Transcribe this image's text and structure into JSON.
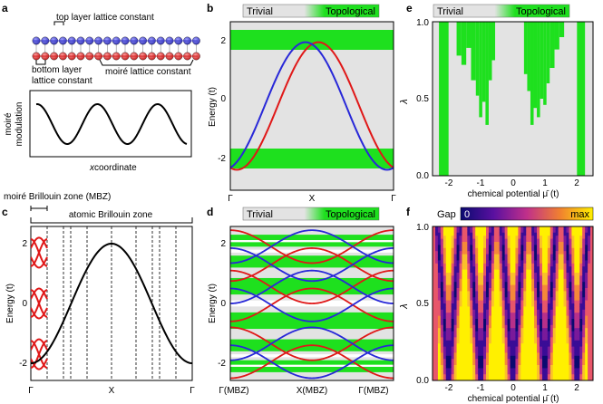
{
  "panels": {
    "a": {
      "letter": "a",
      "top_label": "top layer lattice constant",
      "bottom_label_1": "bottom layer",
      "bottom_label_2": "lattice constant",
      "moire_label": "moiré lattice constant",
      "ylabel_1": "moiré",
      "ylabel_2": "modulation",
      "xlabel_x": "x",
      "xlabel_rest": " coordinate",
      "top_atom_color": "#3a3acc",
      "bottom_atom_color": "#d42020"
    },
    "b": {
      "letter": "b",
      "legend_trivial": "Trivial",
      "legend_topological": "Topological",
      "ylabel": "Energy (t)",
      "yticks": [
        "2",
        "0",
        "-2"
      ],
      "xticks": [
        "Γ",
        "X",
        "Γ"
      ]
    },
    "c": {
      "letter": "c",
      "mbz_label": "moiré Brillouin zone (MBZ)",
      "abz_label": "atomic Brillouin zone",
      "ylabel": "Energy (t)",
      "yticks": [
        "2",
        "0",
        "-2"
      ],
      "xticks": [
        "Γ",
        "X",
        "Γ"
      ]
    },
    "d": {
      "letter": "d",
      "legend_trivial": "Trivial",
      "legend_topological": "Topological",
      "ylabel": "Energy (t)",
      "yticks": [
        "2",
        "0",
        "-2"
      ],
      "xticks": [
        "Γ(MBZ)",
        "X(MBZ)",
        "Γ(MBZ)"
      ]
    },
    "e": {
      "letter": "e",
      "legend_trivial": "Trivial",
      "legend_topological": "Topological",
      "ylabel": "λ",
      "yticks": [
        "1.0",
        "0.5",
        "0.0"
      ],
      "xticks": [
        "-2",
        "-1",
        "0",
        "1",
        "2"
      ],
      "xlabel": "chemical potential μ̄ (t)"
    },
    "f": {
      "letter": "f",
      "cbar_gap": "Gap",
      "cbar_min": "0",
      "cbar_max": "max",
      "ylabel": "λ",
      "yticks": [
        "1.0",
        "0.5",
        "0.0"
      ],
      "xticks": [
        "-2",
        "-1",
        "0",
        "1",
        "2"
      ],
      "xlabel": "chemical potential μ̄ (t)"
    }
  },
  "colors": {
    "topological": "#1ee01e",
    "trivial": "#e3e3e3",
    "band_red": "#e01818",
    "band_blue": "#2828d8"
  },
  "chart_data": [
    {
      "panel": "a",
      "type": "line",
      "title": "",
      "xlabel": "x coordinate",
      "ylabel": "moiré modulation",
      "series": [
        {
          "name": "modulation",
          "function": "cos",
          "periods": 2.5
        }
      ]
    },
    {
      "panel": "b",
      "type": "line",
      "xlabel": "",
      "ylabel": "Energy (t)",
      "ylim": [
        -2.6,
        2.6
      ],
      "categories": [
        "Γ",
        "X",
        "Γ"
      ],
      "series": [
        {
          "name": "red band",
          "color": "#e01818",
          "min": -2.2,
          "max": 2.2
        },
        {
          "name": "blue band",
          "color": "#2828d8",
          "min": -2.2,
          "max": 2.2
        }
      ],
      "topological_bands": [
        [
          1.6,
          2.2
        ],
        [
          -2.2,
          -1.6
        ]
      ]
    },
    {
      "panel": "c",
      "type": "line",
      "ylabel": "Energy (t)",
      "ylim": [
        -2.4,
        2.4
      ],
      "categories": [
        "Γ",
        "X",
        "Γ"
      ],
      "series": [
        {
          "name": "atomic band",
          "min": -2,
          "max": 2
        }
      ]
    },
    {
      "panel": "d",
      "type": "line",
      "ylabel": "Energy (t)",
      "ylim": [
        -2.6,
        2.6
      ],
      "categories": [
        "Γ(MBZ)",
        "X(MBZ)",
        "Γ(MBZ)"
      ],
      "topological_bands": [
        [
          1.9,
          2.3
        ],
        [
          1.2,
          1.6
        ],
        [
          0.3,
          0.85
        ],
        [
          -0.85,
          -0.3
        ],
        [
          -1.6,
          -1.2
        ],
        [
          -2.3,
          -1.9
        ]
      ]
    },
    {
      "panel": "e",
      "type": "heatmap",
      "xlabel": "chemical potential μ̄ (t)",
      "ylabel": "λ",
      "xlim": [
        -2.5,
        2.5
      ],
      "ylim": [
        0,
        1
      ]
    },
    {
      "panel": "f",
      "type": "heatmap",
      "xlabel": "chemical potential μ̄ (t)",
      "ylabel": "λ",
      "xlim": [
        -2.5,
        2.5
      ],
      "ylim": [
        0,
        1
      ],
      "colorbar": [
        "0",
        "max"
      ]
    }
  ]
}
